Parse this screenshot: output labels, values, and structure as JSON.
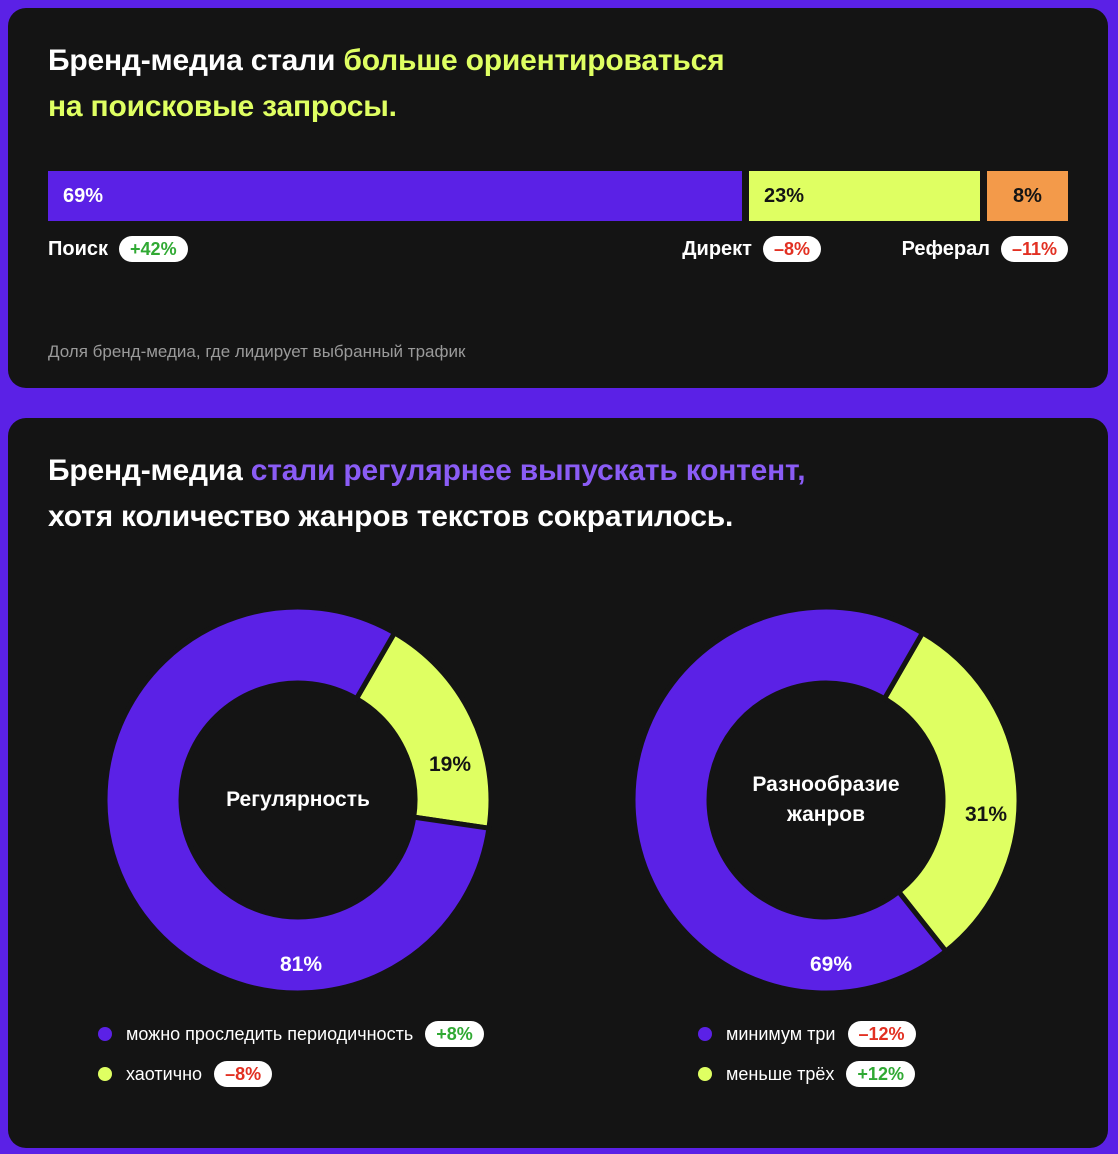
{
  "colors": {
    "violet": "#5b21e6",
    "lime": "#dfff62",
    "orange": "#f39a4a",
    "card": "#141414",
    "positive": "#30a933",
    "negative": "#e23022"
  },
  "section1": {
    "headline": {
      "part1": "Бренд-медиа стали ",
      "highlight1": "больше ориентироваться",
      "highlight2": "на поисковые запросы."
    },
    "note": "Доля бренд-медиа, где лидирует выбранный трафик"
  },
  "section2": {
    "headline": {
      "part1": "Бренд-медиа ",
      "highlight": "стали регулярнее выпускать контент,",
      "part2": "хотя количество жанров текстов сократилось."
    }
  },
  "chart_data": [
    {
      "type": "bar",
      "orientation": "horizontal-stacked",
      "series": [
        {
          "name": "Поиск",
          "value": 69,
          "label": "69%",
          "change": "+42%",
          "change_sign": "positive",
          "color": "#5b21e6"
        },
        {
          "name": "Директ",
          "value": 23,
          "label": "23%",
          "change": "–8%",
          "change_sign": "negative",
          "color": "#dfff62"
        },
        {
          "name": "Реферал",
          "value": 8,
          "label": "8%",
          "change": "–11%",
          "change_sign": "negative",
          "color": "#f39a4a"
        }
      ]
    },
    {
      "type": "pie",
      "variant": "donut",
      "center_label": "Регулярность",
      "slices": [
        {
          "name": "можно проследить периодичность",
          "value": 81,
          "label": "81%",
          "change": "+8%",
          "change_sign": "positive",
          "color": "#5b21e6"
        },
        {
          "name": "хаотично",
          "value": 19,
          "label": "19%",
          "change": "–8%",
          "change_sign": "negative",
          "color": "#dfff62"
        }
      ]
    },
    {
      "type": "pie",
      "variant": "donut",
      "center_label_lines": [
        "Разнообразие",
        "жанров"
      ],
      "slices": [
        {
          "name": "минимум три",
          "value": 69,
          "label": "69%",
          "change": "–12%",
          "change_sign": "negative",
          "color": "#5b21e6"
        },
        {
          "name": "меньше трёх",
          "value": 31,
          "label": "31%",
          "change": "+12%",
          "change_sign": "positive",
          "color": "#dfff62"
        }
      ]
    }
  ]
}
